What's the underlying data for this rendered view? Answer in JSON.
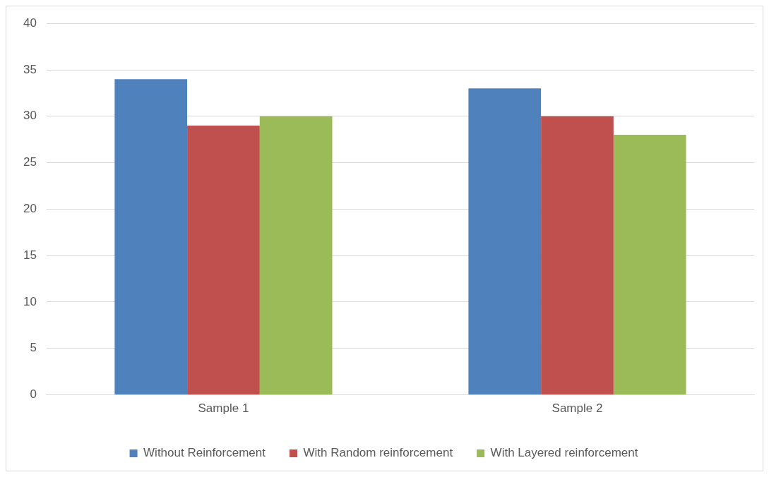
{
  "chart_data": {
    "type": "bar",
    "categories": [
      "Sample 1",
      "Sample 2"
    ],
    "series": [
      {
        "name": "Without Reinforcement",
        "color": "#4f81bd",
        "values": [
          34,
          33
        ]
      },
      {
        "name": "With Random reinforcement",
        "color": "#c0504d",
        "values": [
          29,
          30
        ]
      },
      {
        "name": "With Layered reinforcement",
        "color": "#9bbb59",
        "values": [
          30,
          28
        ]
      }
    ],
    "ylim": [
      0,
      40
    ],
    "yticks": [
      0,
      5,
      10,
      15,
      20,
      25,
      30,
      35,
      40
    ],
    "grid": "y",
    "legend": "bottom"
  }
}
